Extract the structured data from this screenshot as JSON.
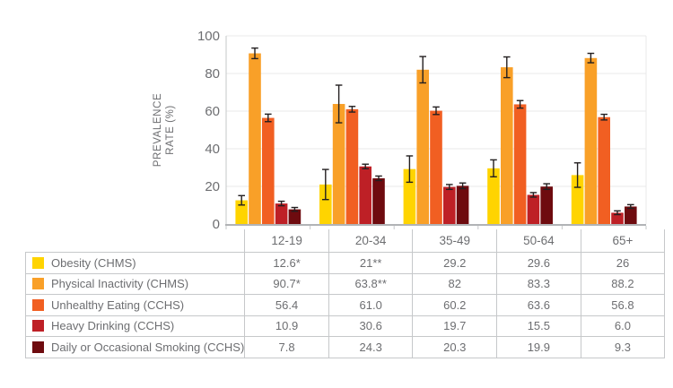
{
  "chart_data": {
    "type": "bar",
    "title": "",
    "xlabel": "",
    "ylabel": "PREVALENCE RATE (%)",
    "ylabel_lines": [
      "PREVALENCE",
      "RATE (%)"
    ],
    "categories": [
      "12-19",
      "20-34",
      "35-49",
      "50-64",
      "65+"
    ],
    "series": [
      {
        "name": "Obesity (CHMS)",
        "color": "#FFD400",
        "values": [
          12.6,
          21,
          29.2,
          29.6,
          26
        ],
        "error_bars": [
          2.5,
          8,
          7,
          4.5,
          6.5
        ],
        "table_values": [
          "12.6*",
          "21**",
          "29.2",
          "29.6",
          "26"
        ]
      },
      {
        "name": "Physical Inactivity (CHMS)",
        "color": "#F9A028",
        "values": [
          90.7,
          63.8,
          82,
          83.3,
          88.2
        ],
        "error_bars": [
          2.8,
          10,
          7,
          5.5,
          2.5
        ],
        "table_values": [
          "90.7*",
          "63.8**",
          "82",
          "83.3",
          "88.2"
        ]
      },
      {
        "name": "Unhealthy Eating (CCHS)",
        "color": "#F15F22",
        "values": [
          56.4,
          61.0,
          60.2,
          63.6,
          56.8
        ],
        "error_bars": [
          2,
          1.5,
          2,
          2,
          1.5
        ],
        "table_values": [
          "56.4",
          "61.0",
          "60.2",
          "63.6",
          "56.8"
        ]
      },
      {
        "name": "Heavy Drinking (CCHS)",
        "color": "#BE2026",
        "values": [
          10.9,
          30.6,
          19.7,
          15.5,
          6.0
        ],
        "error_bars": [
          1.2,
          1.2,
          1.3,
          1.2,
          1
        ],
        "table_values": [
          "10.9",
          "30.6",
          "19.7",
          "15.5",
          "6.0"
        ]
      },
      {
        "name": "Daily or Occasional Smoking (CCHS)",
        "color": "#6E0B0F",
        "values": [
          7.8,
          24.3,
          20.3,
          19.9,
          9.3
        ],
        "error_bars": [
          1,
          1.2,
          1.5,
          1.5,
          1
        ],
        "table_values": [
          "7.8",
          "24.3",
          "20.3",
          "19.9",
          "9.3"
        ]
      }
    ],
    "ylim": [
      0,
      100
    ],
    "yticks": [
      0,
      20,
      40,
      60,
      80,
      100
    ],
    "grid": true,
    "error_bar_color": "#231F20",
    "legend_position": "table-below-chart-left-column"
  }
}
